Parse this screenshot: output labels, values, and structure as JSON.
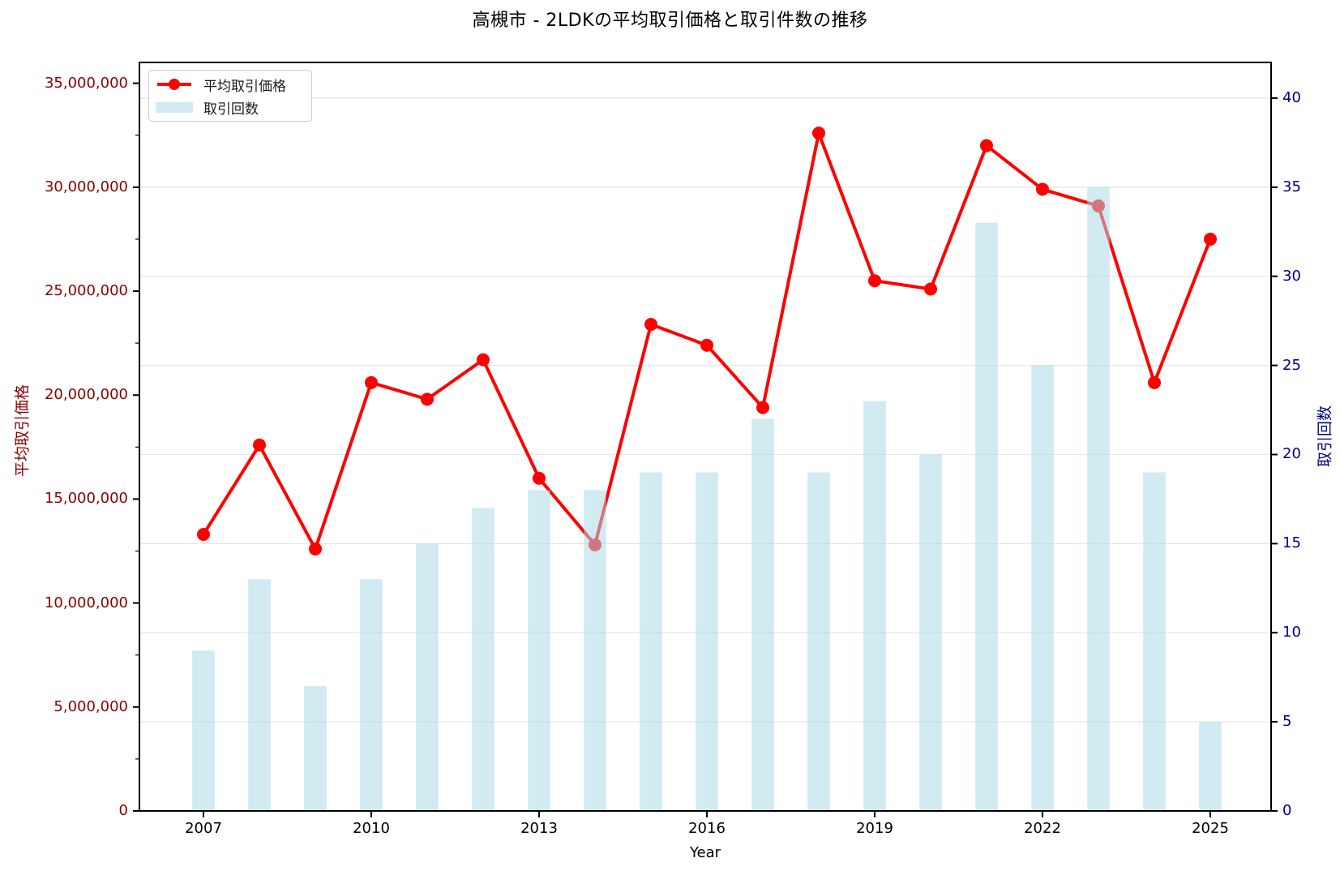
{
  "title": "高槻市 - 2LDKの平均取引価格と取引件数の推移",
  "legend": {
    "price_label": "平均取引価格",
    "count_label": "取引回数"
  },
  "axes": {
    "x_label": "Year",
    "y_left_label": "平均取引価格",
    "y_right_label": "取引回数"
  },
  "colors": {
    "line": "#ff0000",
    "bar_fill": "#add8e6",
    "bar_alpha": 0.55,
    "left_axis_text": "#8B0000",
    "right_axis_text": "#00008B",
    "grid": "#e6e6e6",
    "spine": "#000000",
    "title_text": "#000000"
  },
  "chart_data": {
    "type": "line+bar",
    "title": "高槻市 - 2LDKの平均取引価格と取引件数の推移",
    "xlabel": "Year",
    "categories": [
      2007,
      2008,
      2009,
      2010,
      2011,
      2012,
      2013,
      2014,
      2015,
      2016,
      2017,
      2018,
      2019,
      2020,
      2021,
      2022,
      2023,
      2024,
      2025
    ],
    "series": [
      {
        "name": "平均取引価格",
        "type": "line",
        "axis": "left",
        "color": "#ff0000",
        "values": [
          13300000,
          17600000,
          12600000,
          20600000,
          19800000,
          21700000,
          16000000,
          12800000,
          23400000,
          22400000,
          19400000,
          32600000,
          25500000,
          25100000,
          32000000,
          29900000,
          29100000,
          20600000,
          27500000
        ]
      },
      {
        "name": "取引回数",
        "type": "bar",
        "axis": "right",
        "color": "rgba(173,216,230,0.55)",
        "values": [
          9,
          13,
          7,
          13,
          15,
          17,
          18,
          18,
          19,
          19,
          22,
          19,
          23,
          20,
          33,
          25,
          35,
          19,
          5
        ]
      }
    ],
    "y_left": {
      "label": "平均取引価格",
      "min": 0,
      "max": 36000000,
      "tick_values": [
        0,
        5000000,
        10000000,
        15000000,
        20000000,
        25000000,
        30000000,
        35000000
      ],
      "tick_labels": [
        "0",
        "5,000,000",
        "10,000,000",
        "15,000,000",
        "20,000,000",
        "25,000,000",
        "30,000,000",
        "35,000,000"
      ],
      "minor_tick_step": 2500000
    },
    "y_right": {
      "label": "取引回数",
      "min": 0,
      "max": 42,
      "tick_values": [
        0,
        5,
        10,
        15,
        20,
        25,
        30,
        35,
        40
      ],
      "tick_labels": [
        "0",
        "5",
        "10",
        "15",
        "20",
        "25",
        "30",
        "35",
        "40"
      ]
    },
    "x": {
      "tick_values": [
        2007,
        2010,
        2013,
        2016,
        2019,
        2022,
        2025
      ],
      "tick_labels": [
        "2007",
        "2010",
        "2013",
        "2016",
        "2019",
        "2022",
        "2025"
      ]
    },
    "grid": "horizontal gridlines at right-axis ticks",
    "legend_position": "upper left",
    "bar_width_years": 0.4
  }
}
